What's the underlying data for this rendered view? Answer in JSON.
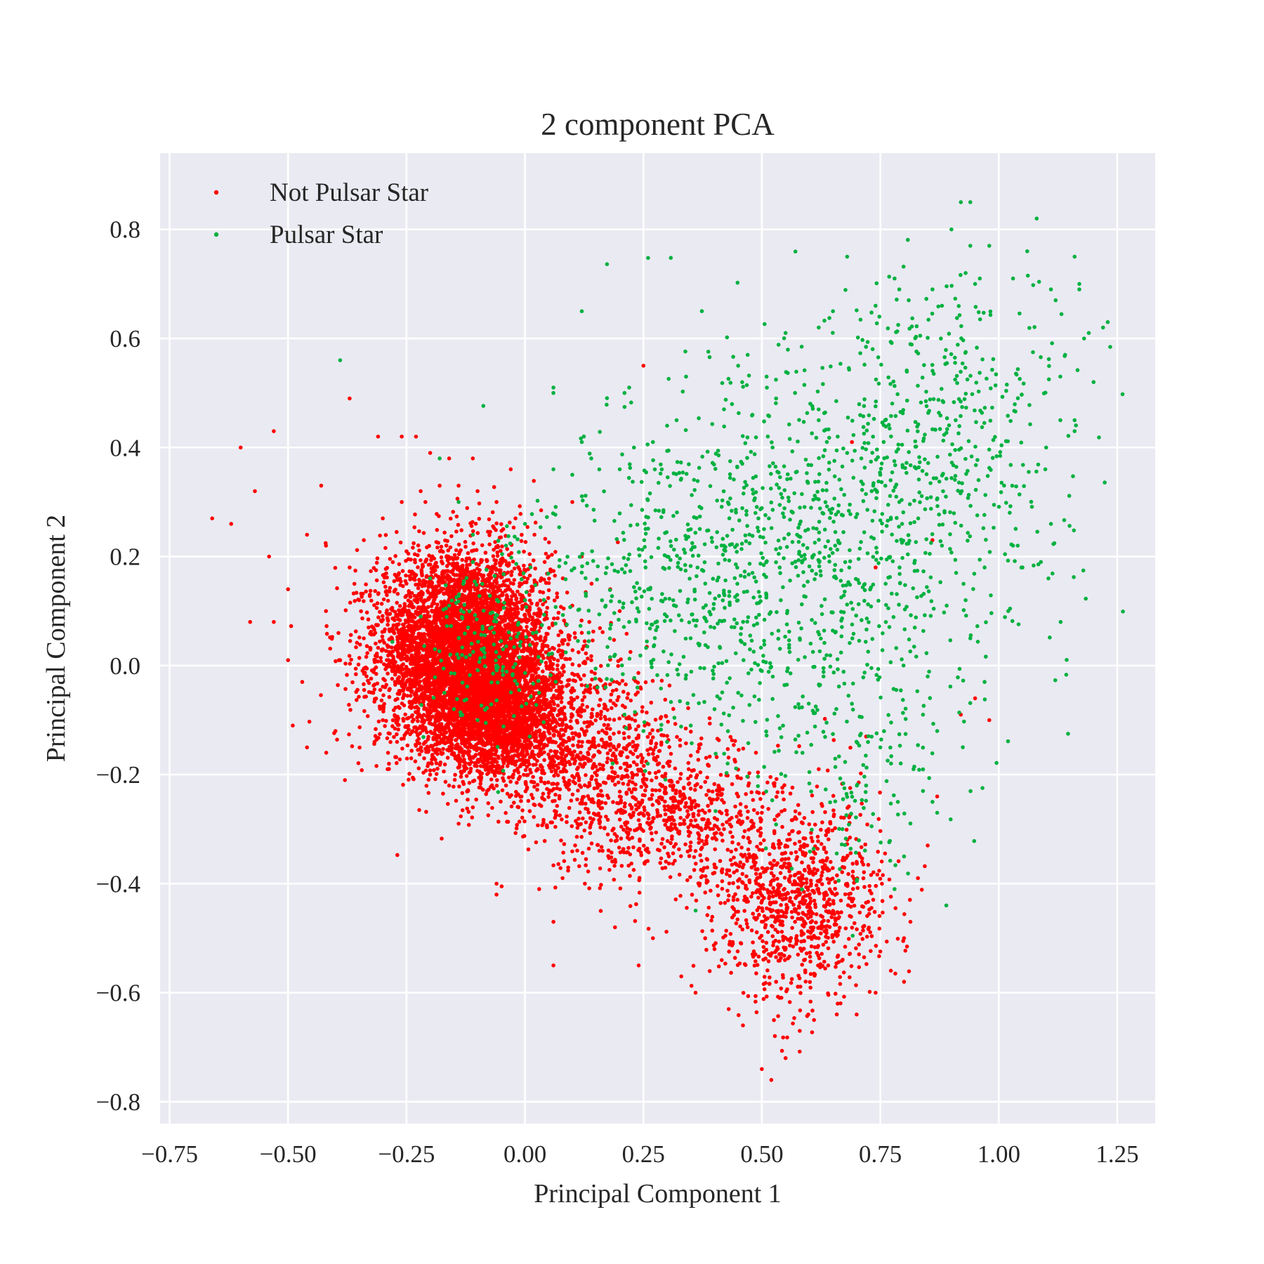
{
  "chart_data": {
    "type": "scatter",
    "title": "2 component PCA",
    "xlabel": "Principal Component 1",
    "ylabel": "Principal Component 2",
    "xlim": [
      -0.77,
      1.33
    ],
    "ylim": [
      -0.84,
      0.94
    ],
    "xticks": [
      -0.75,
      -0.5,
      -0.25,
      0.0,
      0.25,
      0.5,
      0.75,
      1.0,
      1.25
    ],
    "xtick_labels": [
      "−0.75",
      "−0.50",
      "−0.25",
      "0.00",
      "0.25",
      "0.50",
      "0.75",
      "1.00",
      "1.25"
    ],
    "yticks": [
      -0.8,
      -0.6,
      -0.4,
      -0.2,
      0.0,
      0.2,
      0.4,
      0.6,
      0.8
    ],
    "ytick_labels": [
      "−0.8",
      "−0.6",
      "−0.4",
      "−0.2",
      "0.0",
      "0.2",
      "0.4",
      "0.6",
      "0.8"
    ],
    "grid": true,
    "background": "#EAEAF2",
    "grid_color": "#FFFFFF",
    "legend_position": "top-left",
    "series": [
      {
        "name": "Not Pulsar Star",
        "color": "#FF0000",
        "points": [
          [
            -0.66,
            0.27
          ],
          [
            -0.6,
            0.4
          ],
          [
            -0.53,
            0.43
          ],
          [
            -0.43,
            0.33
          ],
          [
            -0.37,
            0.49
          ],
          [
            -0.31,
            0.42
          ],
          [
            -0.26,
            0.42
          ],
          [
            -0.23,
            0.42
          ],
          [
            -0.2,
            0.39
          ],
          [
            -0.16,
            0.38
          ],
          [
            -0.11,
            0.38
          ],
          [
            -0.03,
            0.36
          ],
          [
            -0.62,
            0.26
          ],
          [
            -0.57,
            0.32
          ],
          [
            -0.54,
            0.2
          ],
          [
            -0.5,
            0.14
          ],
          [
            -0.46,
            0.24
          ],
          [
            -0.42,
            0.22
          ],
          [
            -0.58,
            0.08
          ],
          [
            -0.53,
            0.08
          ],
          [
            -0.5,
            0.01
          ],
          [
            -0.47,
            -0.03
          ],
          [
            -0.49,
            -0.11
          ],
          [
            -0.46,
            -0.15
          ],
          [
            -0.4,
            -0.12
          ],
          [
            -0.38,
            -0.21
          ],
          [
            -0.39,
            0.01
          ],
          [
            -0.42,
            0.1
          ],
          [
            -0.36,
            0.15
          ],
          [
            -0.34,
            0.05
          ],
          [
            -0.29,
            -0.19
          ],
          [
            -0.14,
            -0.29
          ],
          [
            -0.11,
            -0.26
          ],
          [
            -0.06,
            -0.4
          ],
          [
            -0.06,
            -0.42
          ],
          [
            0.03,
            -0.41
          ],
          [
            0.06,
            -0.47
          ],
          [
            0.06,
            -0.55
          ],
          [
            0.16,
            -0.45
          ],
          [
            0.19,
            -0.48
          ],
          [
            0.24,
            -0.55
          ],
          [
            0.27,
            -0.5
          ],
          [
            0.33,
            -0.57
          ],
          [
            0.36,
            -0.6
          ],
          [
            0.4,
            -0.52
          ],
          [
            0.43,
            -0.63
          ],
          [
            0.46,
            -0.66
          ],
          [
            0.5,
            -0.74
          ],
          [
            0.52,
            -0.76
          ],
          [
            0.55,
            -0.72
          ],
          [
            0.58,
            -0.67
          ],
          [
            0.61,
            -0.65
          ],
          [
            0.66,
            -0.62
          ],
          [
            0.7,
            -0.64
          ],
          [
            0.74,
            -0.6
          ],
          [
            0.8,
            -0.58
          ],
          [
            0.8,
            -0.5
          ],
          [
            0.85,
            -0.33
          ],
          [
            0.87,
            -0.24
          ],
          [
            0.92,
            -0.09
          ],
          [
            0.95,
            -0.06
          ],
          [
            0.98,
            -0.1
          ],
          [
            0.86,
            0.23
          ],
          [
            0.25,
            0.55
          ],
          [
            0.1,
            0.3
          ],
          [
            0.12,
            0.2
          ],
          [
            0.69,
            0.41
          ],
          [
            0.74,
            0.18
          ],
          [
            0.62,
            -0.19
          ],
          [
            0.72,
            -0.13
          ],
          [
            0.45,
            -0.24
          ],
          [
            0.5,
            -0.27
          ],
          [
            0.55,
            -0.33
          ],
          [
            0.58,
            -0.38
          ],
          [
            0.6,
            -0.42
          ],
          [
            0.57,
            -0.47
          ],
          [
            0.52,
            -0.45
          ],
          [
            0.49,
            -0.39
          ],
          [
            0.46,
            -0.35
          ],
          [
            0.42,
            -0.3
          ],
          [
            0.38,
            -0.27
          ],
          [
            0.33,
            -0.25
          ],
          [
            0.29,
            -0.22
          ],
          [
            0.25,
            -0.2
          ],
          [
            0.21,
            -0.18
          ],
          [
            0.17,
            -0.15
          ],
          [
            0.13,
            -0.12
          ],
          [
            0.08,
            -0.1
          ],
          [
            0.04,
            -0.08
          ],
          [
            0.62,
            -0.5
          ],
          [
            0.65,
            -0.45
          ],
          [
            0.68,
            -0.4
          ],
          [
            0.7,
            -0.36
          ],
          [
            0.64,
            -0.55
          ],
          [
            0.55,
            -0.52
          ],
          [
            0.53,
            -0.58
          ],
          [
            0.47,
            -0.48
          ],
          [
            0.44,
            -0.43
          ],
          [
            0.4,
            -0.38
          ],
          [
            0.36,
            -0.34
          ],
          [
            0.32,
            -0.3
          ],
          [
            0.28,
            -0.27
          ],
          [
            0.24,
            -0.26
          ],
          [
            0.2,
            -0.24
          ],
          [
            0.15,
            -0.21
          ],
          [
            0.11,
            -0.19
          ],
          [
            0.07,
            -0.17
          ],
          [
            0.03,
            -0.15
          ],
          [
            0.0,
            -0.13
          ],
          [
            -0.03,
            -0.11
          ],
          [
            -0.07,
            -0.1
          ],
          [
            -0.1,
            -0.08
          ],
          [
            -0.14,
            -0.06
          ],
          [
            -0.18,
            -0.04
          ],
          [
            -0.22,
            -0.02
          ],
          [
            -0.26,
            0.0
          ],
          [
            -0.3,
            0.03
          ],
          [
            -0.33,
            0.07
          ],
          [
            -0.35,
            0.12
          ],
          [
            -0.37,
            0.18
          ],
          [
            -0.34,
            0.23
          ],
          [
            -0.3,
            0.27
          ],
          [
            -0.26,
            0.3
          ],
          [
            -0.22,
            0.32
          ],
          [
            -0.18,
            0.33
          ],
          [
            -0.14,
            0.33
          ],
          [
            -0.1,
            0.32
          ],
          [
            -0.06,
            0.3
          ],
          [
            -0.02,
            0.27
          ],
          [
            0.02,
            0.24
          ],
          [
            0.05,
            0.2
          ],
          [
            0.08,
            0.16
          ],
          [
            0.1,
            0.11
          ],
          [
            0.12,
            0.06
          ],
          [
            0.14,
            0.01
          ],
          [
            0.15,
            -0.04
          ],
          [
            0.16,
            -0.09
          ],
          [
            0.18,
            0.14
          ],
          [
            0.2,
            0.1
          ],
          [
            0.08,
            0.04
          ],
          [
            0.05,
            -0.04
          ],
          [
            -0.3,
            -0.1
          ],
          [
            -0.27,
            -0.14
          ],
          [
            -0.24,
            -0.17
          ],
          [
            -0.2,
            -0.2
          ],
          [
            -0.16,
            -0.22
          ],
          [
            -0.12,
            -0.23
          ],
          [
            -0.08,
            -0.23
          ],
          [
            -0.04,
            -0.22
          ],
          [
            -0.32,
            -0.05
          ]
        ],
        "clusters": [
          {
            "cx": -0.13,
            "cy": 0.03,
            "sx": 0.09,
            "sy": 0.09,
            "n": 5000
          },
          {
            "cx": -0.07,
            "cy": -0.08,
            "sx": 0.07,
            "sy": 0.06,
            "n": 2200
          },
          {
            "cx": 0.1,
            "cy": -0.14,
            "sx": 0.1,
            "sy": 0.08,
            "n": 800
          },
          {
            "cx": 0.3,
            "cy": -0.27,
            "sx": 0.12,
            "sy": 0.07,
            "n": 700
          },
          {
            "cx": 0.58,
            "cy": -0.43,
            "sx": 0.09,
            "sy": 0.09,
            "n": 950
          }
        ]
      },
      {
        "name": "Pulsar Star",
        "color": "#00B140",
        "points": [
          [
            -0.39,
            0.56
          ],
          [
            0.06,
            0.51
          ],
          [
            0.06,
            0.5
          ],
          [
            0.12,
            0.65
          ],
          [
            0.12,
            0.41
          ],
          [
            0.21,
            0.5
          ],
          [
            0.22,
            0.51
          ],
          [
            0.68,
            0.75
          ],
          [
            0.92,
            0.85
          ],
          [
            0.94,
            0.85
          ],
          [
            1.08,
            0.82
          ],
          [
            0.9,
            0.8
          ],
          [
            0.94,
            0.77
          ],
          [
            0.98,
            0.77
          ],
          [
            1.06,
            0.76
          ],
          [
            1.16,
            0.75
          ],
          [
            0.78,
            0.71
          ],
          [
            0.79,
            0.69
          ],
          [
            0.93,
            0.72
          ],
          [
            0.95,
            0.7
          ],
          [
            0.96,
            0.71
          ],
          [
            1.03,
            0.71
          ],
          [
            1.11,
            0.69
          ],
          [
            1.17,
            0.7
          ],
          [
            1.17,
            0.69
          ],
          [
            1.12,
            0.67
          ],
          [
            1.23,
            0.63
          ],
          [
            1.22,
            0.62
          ],
          [
            1.19,
            0.61
          ],
          [
            1.18,
            0.6
          ],
          [
            1.14,
            0.57
          ],
          [
            1.2,
            0.52
          ],
          [
            1.13,
            0.53
          ],
          [
            1.16,
            0.45
          ],
          [
            1.16,
            0.43
          ],
          [
            1.13,
            0.45
          ],
          [
            1.1,
            0.4
          ],
          [
            1.11,
            0.26
          ],
          [
            1.03,
            0.22
          ],
          [
            1.05,
            0.18
          ],
          [
            1.04,
            0.22
          ],
          [
            1.02,
            0.1
          ],
          [
            0.97,
            0.18
          ],
          [
            0.97,
            -0.03
          ],
          [
            0.89,
            0.11
          ],
          [
            0.85,
            -0.02
          ],
          [
            0.84,
            -0.09
          ],
          [
            0.87,
            -0.12
          ],
          [
            0.87,
            -0.27
          ],
          [
            0.86,
            -0.25
          ],
          [
            0.84,
            -0.23
          ],
          [
            0.82,
            -0.19
          ],
          [
            0.8,
            -0.35
          ],
          [
            0.78,
            -0.41
          ],
          [
            0.34,
            0.53
          ],
          [
            0.3,
            0.44
          ],
          [
            0.45,
            0.55
          ],
          [
            0.47,
            0.57
          ],
          [
            0.51,
            0.53
          ],
          [
            0.55,
            0.61
          ],
          [
            0.62,
            0.62
          ],
          [
            0.65,
            0.65
          ],
          [
            0.74,
            0.66
          ],
          [
            0.81,
            0.67
          ],
          [
            0.86,
            0.69
          ],
          [
            0.88,
            0.66
          ],
          [
            -0.18,
            0.38
          ],
          [
            -0.14,
            0.3
          ],
          [
            -0.11,
            0.24
          ],
          [
            -0.04,
            0.22
          ],
          [
            0.0,
            0.26
          ],
          [
            0.06,
            0.36
          ],
          [
            0.1,
            0.35
          ],
          [
            0.14,
            0.38
          ],
          [
            0.2,
            0.36
          ],
          [
            0.23,
            0.4
          ],
          [
            0.27,
            0.41
          ],
          [
            0.32,
            0.45
          ],
          [
            0.42,
            0.47
          ],
          [
            0.48,
            0.46
          ],
          [
            0.53,
            0.49
          ],
          [
            0.57,
            0.5
          ],
          [
            0.62,
            0.45
          ],
          [
            0.66,
            0.42
          ],
          [
            0.71,
            0.38
          ],
          [
            0.75,
            0.35
          ],
          [
            0.79,
            0.3
          ],
          [
            0.83,
            0.27
          ],
          [
            0.88,
            0.22
          ],
          [
            0.91,
            0.17
          ],
          [
            0.93,
            0.12
          ],
          [
            0.94,
            0.05
          ],
          [
            0.67,
            -0.3
          ],
          [
            0.72,
            -0.22
          ],
          [
            0.75,
            -0.15
          ],
          [
            0.69,
            -0.07
          ],
          [
            0.63,
            -0.02
          ],
          [
            0.58,
            0.05
          ],
          [
            0.54,
            0.12
          ],
          [
            0.48,
            0.17
          ],
          [
            0.42,
            0.22
          ],
          [
            0.35,
            0.25
          ],
          [
            0.3,
            0.2
          ],
          [
            0.26,
            0.14
          ],
          [
            0.22,
            0.08
          ],
          [
            0.19,
            0.02
          ],
          [
            0.17,
            -0.04
          ],
          [
            0.21,
            -0.09
          ],
          [
            0.25,
            -0.12
          ],
          [
            0.3,
            -0.14
          ],
          [
            0.35,
            -0.11
          ],
          [
            0.4,
            -0.08
          ],
          [
            0.45,
            -0.05
          ],
          [
            0.5,
            -0.01
          ],
          [
            -0.22,
            0.09
          ],
          [
            -0.19,
            0.03
          ],
          [
            -0.16,
            0.11
          ],
          [
            -0.12,
            0.07
          ],
          [
            -0.09,
            0.15
          ],
          [
            -0.06,
            0.0
          ],
          [
            -0.03,
            0.05
          ],
          [
            0.0,
            0.12
          ],
          [
            0.03,
            -0.05
          ],
          [
            -0.1,
            -0.1
          ],
          [
            -0.15,
            -0.08
          ],
          [
            -0.07,
            0.07
          ],
          [
            -0.13,
            0.15
          ],
          [
            -0.2,
            0.16
          ],
          [
            -0.11,
            0.19
          ],
          [
            0.01,
            -0.13
          ],
          [
            0.05,
            0.02
          ],
          [
            -0.17,
            -0.05
          ]
        ],
        "clusters": [
          {
            "cx": 0.6,
            "cy": 0.22,
            "sx": 0.22,
            "sy": 0.18,
            "n": 1000
          },
          {
            "cx": 0.9,
            "cy": 0.45,
            "sx": 0.12,
            "sy": 0.12,
            "n": 300
          },
          {
            "cx": 0.3,
            "cy": 0.1,
            "sx": 0.14,
            "sy": 0.12,
            "n": 250
          },
          {
            "cx": -0.08,
            "cy": 0.04,
            "sx": 0.07,
            "sy": 0.08,
            "n": 160
          },
          {
            "cx": 0.7,
            "cy": -0.2,
            "sx": 0.1,
            "sy": 0.1,
            "n": 120
          }
        ]
      }
    ]
  }
}
